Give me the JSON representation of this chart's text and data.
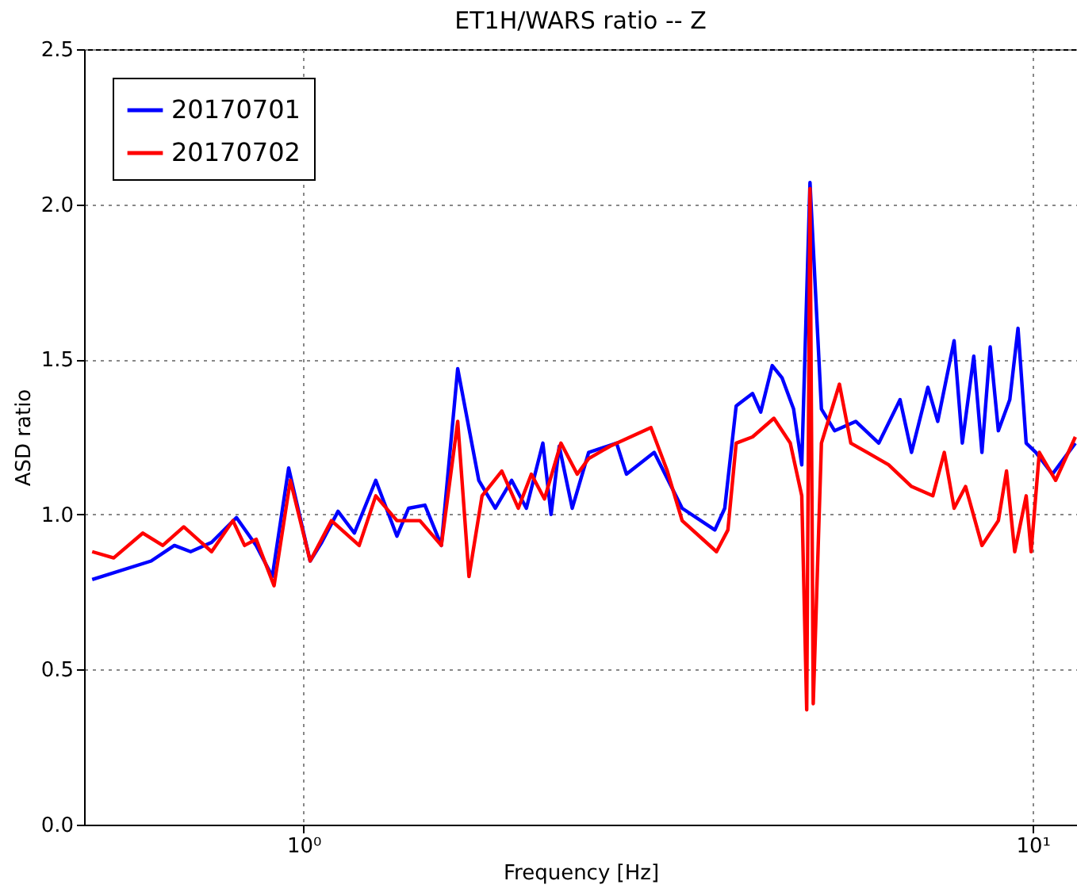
{
  "chart_data": {
    "type": "line",
    "title": "ET1H/WARS ratio -- Z",
    "xlabel": "Frequency [Hz]",
    "ylabel": "ASD ratio",
    "log": "x",
    "grid": true,
    "legend": "top left",
    "xlim": [
      0.5,
      11.5
    ],
    "xticks": [
      {
        "value": 1,
        "label": "10⁰"
      },
      {
        "value": 10,
        "label": "10¹"
      }
    ],
    "ylim": [
      0,
      2.5
    ],
    "yticks": [
      {
        "value": 0,
        "label": "0.0"
      },
      {
        "value": 0.5,
        "label": "0.5"
      },
      {
        "value": 1,
        "label": "1.0"
      },
      {
        "value": 1.5,
        "label": "1.5"
      },
      {
        "value": 2,
        "label": "2.0"
      },
      {
        "value": 2.5,
        "label": "2.5"
      }
    ],
    "series": [
      {
        "name": "20170701",
        "color": "#0000ff",
        "x": [
          0.513,
          0.618,
          0.665,
          0.7,
          0.748,
          0.809,
          0.861,
          0.906,
          0.954,
          1.021,
          1.059,
          1.115,
          1.174,
          1.256,
          1.343,
          1.393,
          1.467,
          1.545,
          1.627,
          1.739,
          1.832,
          1.929,
          2.021,
          2.129,
          2.185,
          2.242,
          2.336,
          2.46,
          2.687,
          2.772,
          3.026,
          3.305,
          3.665,
          3.781,
          3.92,
          4.128,
          4.236,
          4.393,
          4.532,
          4.699,
          4.822,
          4.949,
          5.131,
          5.348,
          5.718,
          6.15,
          6.577,
          6.82,
          7.181,
          7.408,
          7.801,
          8.006,
          8.301,
          8.518,
          8.743,
          8.971,
          9.301,
          9.546,
          9.795,
          10.1,
          10.64,
          11.44
        ],
        "values": [
          0.79,
          0.85,
          0.9,
          0.88,
          0.91,
          0.99,
          0.9,
          0.8,
          1.15,
          0.85,
          0.91,
          1.01,
          0.94,
          1.11,
          0.93,
          1.02,
          1.03,
          0.9,
          1.47,
          1.11,
          1.02,
          1.11,
          1.02,
          1.23,
          1.0,
          1.22,
          1.02,
          1.2,
          1.23,
          1.13,
          1.2,
          1.02,
          0.95,
          1.02,
          1.35,
          1.39,
          1.33,
          1.48,
          1.44,
          1.34,
          1.16,
          2.07,
          1.34,
          1.27,
          1.3,
          1.23,
          1.37,
          1.2,
          1.41,
          1.3,
          1.56,
          1.23,
          1.51,
          1.2,
          1.54,
          1.27,
          1.37,
          1.6,
          1.23,
          1.2,
          1.13,
          1.23
        ]
      },
      {
        "name": "20170702",
        "color": "#ff0000",
        "x": [
          0.513,
          0.549,
          0.602,
          0.641,
          0.685,
          0.748,
          0.8,
          0.83,
          0.861,
          0.911,
          0.959,
          1.021,
          1.092,
          1.192,
          1.256,
          1.343,
          1.444,
          1.545,
          1.627,
          1.686,
          1.757,
          1.87,
          1.97,
          2.053,
          2.14,
          2.254,
          2.373,
          2.46,
          2.632,
          2.995,
          3.154,
          3.305,
          3.684,
          3.819,
          3.92,
          4.128,
          4.416,
          4.65,
          4.822,
          4.898,
          4.949,
          5.0,
          5.131,
          5.431,
          5.63,
          5.93,
          6.343,
          6.82,
          7.294,
          7.563,
          7.801,
          8.089,
          8.518,
          8.971,
          9.205,
          9.447,
          9.795,
          9.949,
          10.21,
          10.75,
          11.44
        ],
        "values": [
          0.88,
          0.86,
          0.94,
          0.9,
          0.96,
          0.88,
          0.98,
          0.9,
          0.92,
          0.77,
          1.11,
          0.85,
          0.98,
          0.9,
          1.06,
          0.98,
          0.98,
          0.9,
          1.3,
          0.8,
          1.06,
          1.14,
          1.02,
          1.13,
          1.05,
          1.23,
          1.13,
          1.18,
          1.22,
          1.28,
          1.14,
          0.98,
          0.88,
          0.95,
          1.23,
          1.25,
          1.31,
          1.23,
          1.06,
          0.37,
          2.05,
          0.39,
          1.23,
          1.42,
          1.23,
          1.2,
          1.16,
          1.09,
          1.06,
          1.2,
          1.02,
          1.09,
          0.9,
          0.98,
          1.14,
          0.88,
          1.06,
          0.88,
          1.2,
          1.11,
          1.25
        ]
      }
    ]
  }
}
